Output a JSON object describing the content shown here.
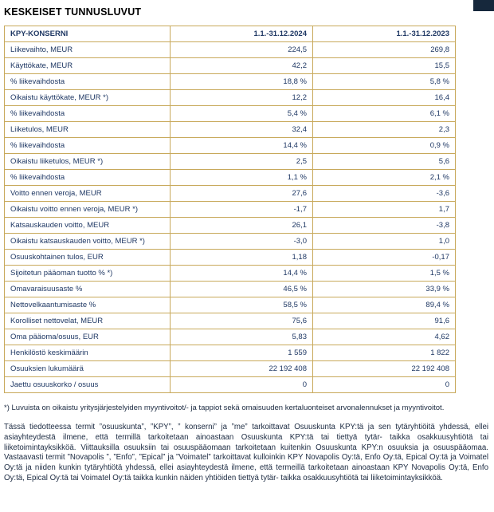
{
  "page": {
    "title": "KESKEISET TUNNUSLUVUT"
  },
  "colors": {
    "table_border": "#c8a95b",
    "table_text": "#1f3864",
    "corner_mark": "#16283c",
    "body_text": "#1b2a41"
  },
  "table": {
    "header": {
      "col1": "KPY-KONSERNI",
      "col2": "1.1.-31.12.2024",
      "col3": "1.1.-31.12.2023"
    },
    "rows": [
      {
        "label": "Liikevaihto, MEUR",
        "v1": "224,5",
        "v2": "269,8"
      },
      {
        "label": "Käyttökate, MEUR",
        "v1": "42,2",
        "v2": "15,5"
      },
      {
        "label": "% liikevaihdosta",
        "v1": "18,8 %",
        "v2": "5,8 %"
      },
      {
        "label": "Oikaistu käyttökate, MEUR *)",
        "v1": "12,2",
        "v2": "16,4"
      },
      {
        "label": "% liikevaihdosta",
        "v1": "5,4 %",
        "v2": "6,1 %"
      },
      {
        "label": "Liiketulos, MEUR",
        "v1": "32,4",
        "v2": "2,3"
      },
      {
        "label": "% liikevaihdosta",
        "v1": "14,4 %",
        "v2": "0,9 %"
      },
      {
        "label": "Oikaistu liiketulos, MEUR *)",
        "v1": "2,5",
        "v2": "5,6"
      },
      {
        "label": "% liikevaihdosta",
        "v1": "1,1 %",
        "v2": "2,1 %"
      },
      {
        "label": "Voitto ennen veroja, MEUR",
        "v1": "27,6",
        "v2": "-3,6"
      },
      {
        "label": "Oikaistu voitto ennen veroja, MEUR *)",
        "v1": "-1,7",
        "v2": "1,7"
      },
      {
        "label": "Katsauskauden voitto, MEUR",
        "v1": "26,1",
        "v2": "-3,8"
      },
      {
        "label": "Oikaistu katsauskauden voitto, MEUR *)",
        "v1": "-3,0",
        "v2": "1,0"
      },
      {
        "label": "Osuuskohtainen tulos, EUR",
        "v1": "1,18",
        "v2": "-0,17"
      },
      {
        "label": "Sijoitetun pääoman tuotto % *)",
        "v1": "14,4 %",
        "v2": "1,5 %"
      },
      {
        "label": "Omavaraisuusaste %",
        "v1": "46,5 %",
        "v2": "33,9 %"
      },
      {
        "label": "Nettovelkaantumisaste %",
        "v1": "58,5 %",
        "v2": "89,4 %"
      },
      {
        "label": "Korolliset nettovelat, MEUR",
        "v1": "75,6",
        "v2": "91,6"
      },
      {
        "label": "Oma pääoma/osuus, EUR",
        "v1": "5,83",
        "v2": "4,62"
      },
      {
        "label": "Henkilöstö keskimäärin",
        "v1": "1 559",
        "v2": "1 822"
      },
      {
        "label": "Osuuksien lukumäärä",
        "v1": "22 192 408",
        "v2": "22 192 408"
      },
      {
        "label": "Jaettu osuuskorko / osuus",
        "v1": "0",
        "v2": "0"
      }
    ]
  },
  "footnote": "*) Luvuista on oikaistu yritysjärjestelyiden myyntivoitot/- ja tappiot sekä omaisuuden kertaluonteiset arvonalennukset ja myyntivoitot.",
  "body_text": "Tässä tiedotteessa termit ”osuuskunta”, ”KPY”, ” konserni” ja ”me” tarkoittavat Osuuskunta KPY:tä ja sen tytäryhtiöitä yhdessä, ellei asiayhteydestä ilmene, että termillä tarkoitetaan ainoastaan Osuuskunta KPY:tä tai tiettyä tytär- taikka osakkuusyhtiötä tai liiketoimintayksikköä. Viittauksilla osuuksiin tai osuuspääomaan tarkoitetaan kuitenkin Osuuskunta KPY:n osuuksia ja osuuspääomaa. Vastaavasti termit ”Novapolis ”, ”Enfo”, ”Epical” ja ”Voimatel” tarkoittavat kulloinkin KPY Novapolis Oy:tä, Enfo Oy:tä, Epical Oy:tä ja Voimatel Oy:tä ja niiden kunkin tytäryhtiötä yhdessä, ellei asiayhteydestä ilmene, että termeillä tarkoitetaan ainoastaan KPY Novapolis Oy:tä, Enfo Oy:tä, Epical Oy:tä tai Voimatel Oy:tä taikka kunkin näiden yhtiöiden tiettyä tytär- taikka osakkuusyhtiötä tai liiketoimintayksikköä."
}
